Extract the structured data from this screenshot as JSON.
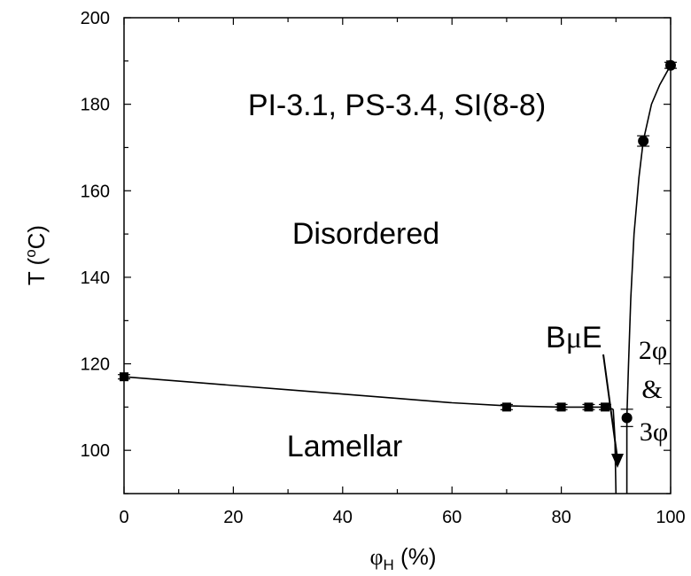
{
  "chart_data": {
    "type": "scatter",
    "xlabel": "φ",
    "xlabel_sub": "H",
    "xlabel_unit": " (%)",
    "ylabel": "T (",
    "ylabel_sup": "o",
    "ylabel_unit": "C)",
    "xlim": [
      0,
      100
    ],
    "ylim": [
      90,
      200
    ],
    "x_ticks": [
      0,
      20,
      40,
      60,
      80,
      100
    ],
    "y_ticks": [
      100,
      120,
      140,
      160,
      180,
      200
    ],
    "grid": false,
    "series": [
      {
        "marker": "square",
        "points": [
          {
            "x": 0,
            "y": 117,
            "err": 0.5
          },
          {
            "x": 70,
            "y": 110,
            "err": 0.6
          },
          {
            "x": 80,
            "y": 110,
            "err": 0.6
          },
          {
            "x": 85,
            "y": 110,
            "err": 0.6
          },
          {
            "x": 88,
            "y": 110,
            "err": 0.6
          }
        ]
      },
      {
        "marker": "circle",
        "points": [
          {
            "x": 92,
            "y": 107.5,
            "err": 2.0
          },
          {
            "x": 95,
            "y": 171.5,
            "err": 1.2
          },
          {
            "x": 100,
            "y": 189,
            "err": 0.7
          }
        ]
      }
    ],
    "curves": {
      "order_disorder": [
        [
          0,
          117
        ],
        [
          10,
          116
        ],
        [
          20,
          115
        ],
        [
          30,
          114
        ],
        [
          40,
          113
        ],
        [
          50,
          112
        ],
        [
          60,
          111
        ],
        [
          70,
          110.3
        ],
        [
          80,
          110
        ],
        [
          85,
          110
        ],
        [
          88,
          110
        ],
        [
          89.5,
          109.5
        ]
      ],
      "left_boundary": [
        [
          89.5,
          109.5
        ],
        [
          89.8,
          103
        ],
        [
          90.0,
          90
        ]
      ],
      "right_boundary": [
        [
          92,
          90
        ],
        [
          92,
          100
        ],
        [
          92,
          107.5
        ],
        [
          92.3,
          120
        ],
        [
          92.7,
          135
        ],
        [
          93.3,
          150
        ],
        [
          94.2,
          163
        ],
        [
          95,
          171.5
        ],
        [
          96.5,
          180
        ],
        [
          98,
          184.5
        ],
        [
          100,
          189
        ]
      ]
    },
    "annotations": {
      "title": "PI-3.1, PS-3.4, SI(8-8)",
      "disordered": "Disordered",
      "lamellar": "Lamellar",
      "bue_b": "B",
      "bue_mu": "μ",
      "bue_e": "E",
      "two_phase": "2φ",
      "ampersand": "&",
      "three_phase": "3φ"
    }
  }
}
